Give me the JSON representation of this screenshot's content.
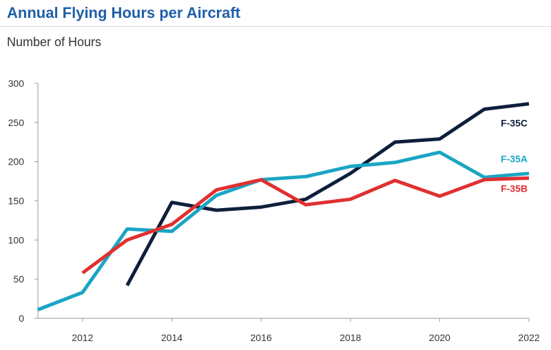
{
  "header": {
    "title": "Annual Flying Hours per Aircraft",
    "subtitle": "Number of Hours"
  },
  "chart_data": {
    "type": "line",
    "title": "Annual Flying Hours per Aircraft",
    "ylabel": "Number of Hours",
    "xlabel": "",
    "xlim": [
      2011,
      2022
    ],
    "ylim": [
      0,
      300
    ],
    "x_ticks": [
      2012,
      2014,
      2016,
      2018,
      2020,
      2022
    ],
    "y_ticks": [
      0,
      50,
      100,
      150,
      200,
      250,
      300
    ],
    "grid": false,
    "legend": "inline labels at line ends",
    "series": [
      {
        "name": "F-35C",
        "color": "#0d1f3c",
        "x": [
          2013,
          2014,
          2015,
          2016,
          2017,
          2018,
          2019,
          2020,
          2021,
          2022
        ],
        "values": [
          42,
          148,
          138,
          142,
          152,
          185,
          225,
          229,
          267,
          274
        ]
      },
      {
        "name": "F-35A",
        "color": "#1aa5c4",
        "x": [
          2011,
          2012,
          2013,
          2014,
          2015,
          2016,
          2017,
          2018,
          2019,
          2020,
          2021,
          2022
        ],
        "values": [
          11,
          33,
          114,
          111,
          157,
          177,
          181,
          194,
          199,
          212,
          180,
          185
        ]
      },
      {
        "name": "F-35B",
        "color": "#e03030",
        "x": [
          2012,
          2013,
          2014,
          2015,
          2016,
          2017,
          2018,
          2019,
          2020,
          2021,
          2022
        ],
        "values": [
          58,
          100,
          120,
          164,
          177,
          145,
          152,
          176,
          156,
          177,
          179
        ]
      }
    ]
  }
}
